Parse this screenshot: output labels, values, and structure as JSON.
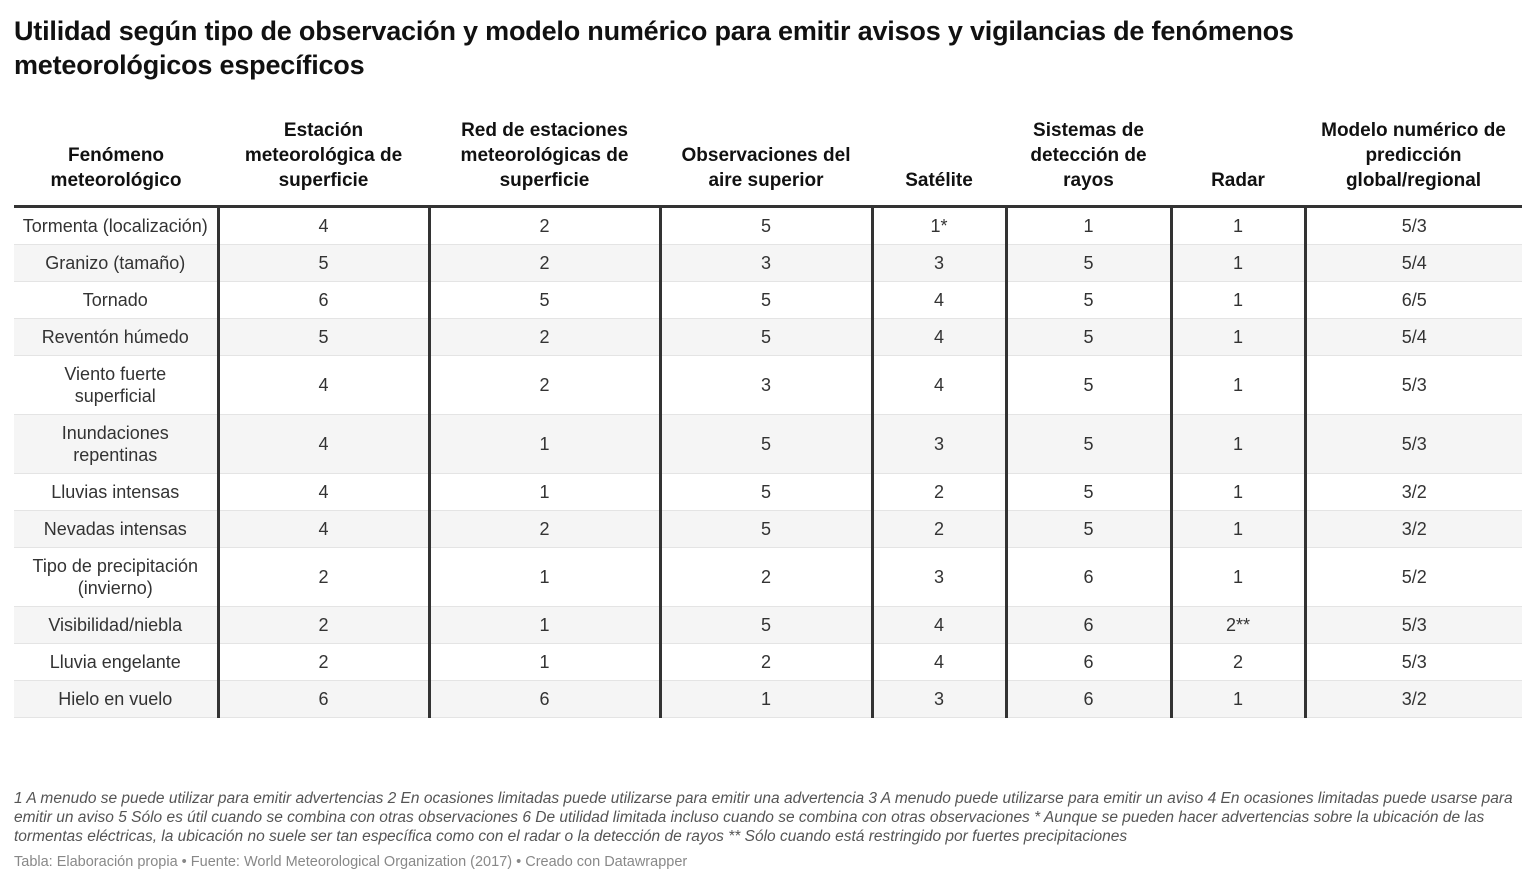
{
  "title": "Utilidad según tipo de observación y modelo numérico para emitir avisos y vigilancias de fenómenos meteorológicos específicos",
  "chart_data": {
    "type": "table",
    "title": "Utilidad según tipo de observación y modelo numérico para emitir avisos y vigilancias de fenómenos meteorológicos específicos",
    "columns": [
      "Fenómeno meteorológico",
      "Estación meteorológica de superficie",
      "Red de estaciones meteorológicas de superficie",
      "Observaciones del aire superior",
      "Satélite",
      "Sistemas de detección de rayos",
      "Radar",
      "Modelo numérico de predicción global/regional"
    ],
    "rows": [
      [
        "Tormenta (localización)",
        "4",
        "2",
        "5",
        "1*",
        "1",
        "1",
        "5/3"
      ],
      [
        "Granizo (tamaño)",
        "5",
        "2",
        "3",
        "3",
        "5",
        "1",
        "5/4"
      ],
      [
        "Tornado",
        "6",
        "5",
        "5",
        "4",
        "5",
        "1",
        "6/5"
      ],
      [
        "Reventón húmedo",
        "5",
        "2",
        "5",
        "4",
        "5",
        "1",
        "5/4"
      ],
      [
        "Viento fuerte superficial",
        "4",
        "2",
        "3",
        "4",
        "5",
        "1",
        "5/3"
      ],
      [
        "Inundaciones repentinas",
        "4",
        "1",
        "5",
        "3",
        "5",
        "1",
        "5/3"
      ],
      [
        "Lluvias intensas",
        "4",
        "1",
        "5",
        "2",
        "5",
        "1",
        "3/2"
      ],
      [
        "Nevadas intensas",
        "4",
        "2",
        "5",
        "2",
        "5",
        "1",
        "3/2"
      ],
      [
        "Tipo de precipitación (invierno)",
        "2",
        "1",
        "2",
        "3",
        "6",
        "1",
        "5/2"
      ],
      [
        "Visibilidad/niebla",
        "2",
        "1",
        "5",
        "4",
        "6",
        "2**",
        "5/3"
      ],
      [
        "Lluvia engelante",
        "2",
        "1",
        "2",
        "4",
        "6",
        "2",
        "5/3"
      ],
      [
        "Hielo en vuelo",
        "6",
        "6",
        "1",
        "3",
        "6",
        "1",
        "3/2"
      ]
    ]
  },
  "notes": "1 A menudo se puede utilizar para emitir advertencias 2 En ocasiones limitadas puede utilizarse para emitir una advertencia 3 A menudo puede utilizarse para emitir un aviso 4 En ocasiones limitadas puede usarse para emitir un aviso 5 Sólo es útil cuando se combina con otras observaciones 6 De utilidad limitada incluso cuando se combina con otras observaciones * Aunque se pueden hacer advertencias sobre la ubicación de las tormentas eléctricas, la ubicación no suele ser tan específica como con el radar o la detección de rayos ** Sólo cuando está restringido por fuertes precipitaciones",
  "footer": "Tabla: Elaboración propia • Fuente: World Meteorological Organization (2017) • Creado con Datawrapper"
}
